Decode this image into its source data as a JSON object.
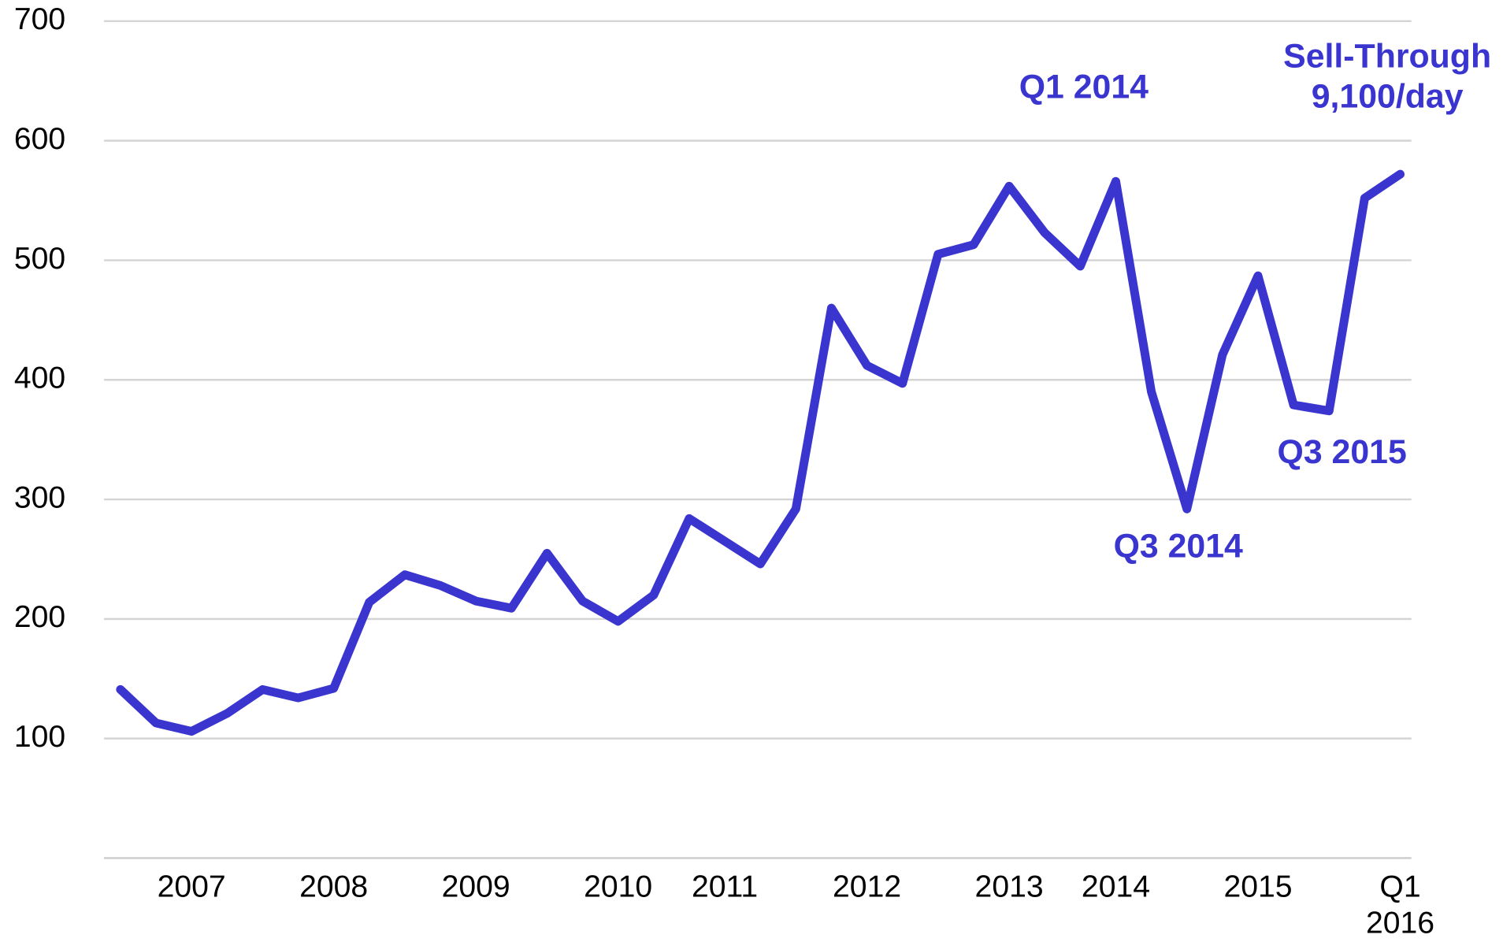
{
  "chart_data": {
    "type": "line",
    "categories": [
      null,
      null,
      "2007",
      null,
      null,
      null,
      "2008",
      null,
      null,
      null,
      "2009",
      null,
      null,
      null,
      "2010",
      null,
      null,
      "2011",
      null,
      null,
      null,
      "2012",
      null,
      null,
      null,
      "2013",
      null,
      null,
      "2014",
      null,
      null,
      null,
      "2015",
      null,
      null,
      null,
      "Q1 2016"
    ],
    "series": [
      {
        "name": "Sell-Through",
        "color": "#3a35cf",
        "values": [
          141,
          113,
          106,
          121,
          141,
          134,
          142,
          214,
          237,
          228,
          215,
          209,
          255,
          215,
          198,
          220,
          284,
          265,
          246,
          292,
          460,
          412,
          397,
          505,
          513,
          562,
          523,
          495,
          566,
          390,
          292,
          421,
          487,
          379,
          374,
          552,
          572
        ]
      }
    ],
    "ylim": [
      0,
      700
    ],
    "yticks": [
      100,
      200,
      300,
      400,
      500,
      600,
      700
    ],
    "grid": true,
    "annotations": [
      "Q1 2014",
      "Q3 2014",
      "Q3 2015",
      "Sell-Through 9,100/day"
    ]
  }
}
